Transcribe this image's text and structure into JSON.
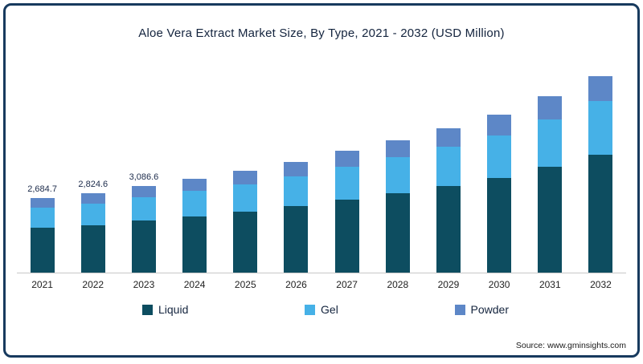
{
  "meta": {
    "source": "Source: www.gminsights.com"
  },
  "chart_data": {
    "type": "bar",
    "stacked": true,
    "title": "Aloe Vera Extract Market Size, By Type, 2021 - 2032 (USD Million)",
    "categories": [
      "2021",
      "2022",
      "2023",
      "2024",
      "2025",
      "2026",
      "2027",
      "2028",
      "2029",
      "2030",
      "2031",
      "2032"
    ],
    "series": [
      {
        "name": "Liquid",
        "color": "#0d4d60",
        "values": [
          1610.8,
          1694.8,
          1852.0,
          2010,
          2184,
          2376,
          2592,
          2832,
          3096,
          3390,
          3780,
          4260
        ]
      },
      {
        "name": "Gel",
        "color": "#46b1e7",
        "values": [
          724.9,
          762.6,
          833.4,
          904,
          983,
          1069,
          1166,
          1274,
          1393,
          1526,
          1701,
          1917
        ]
      },
      {
        "name": "Powder",
        "color": "#5d87c7",
        "values": [
          349.0,
          367.2,
          401.2,
          436,
          473,
          515,
          562,
          614,
          671,
          734,
          819,
          923
        ]
      }
    ],
    "data_labels": [
      "2,684.7",
      "2,824.6",
      "3,086.6",
      "",
      "",
      "",
      "",
      "",
      "",
      "",
      "",
      ""
    ],
    "totals_labeled": {
      "2021": 2684.7,
      "2022": 2824.6,
      "2023": 3086.6
    },
    "xlabel": "",
    "ylabel": "",
    "ylim": [
      0,
      7500
    ],
    "grid": false,
    "legend_position": "bottom"
  }
}
